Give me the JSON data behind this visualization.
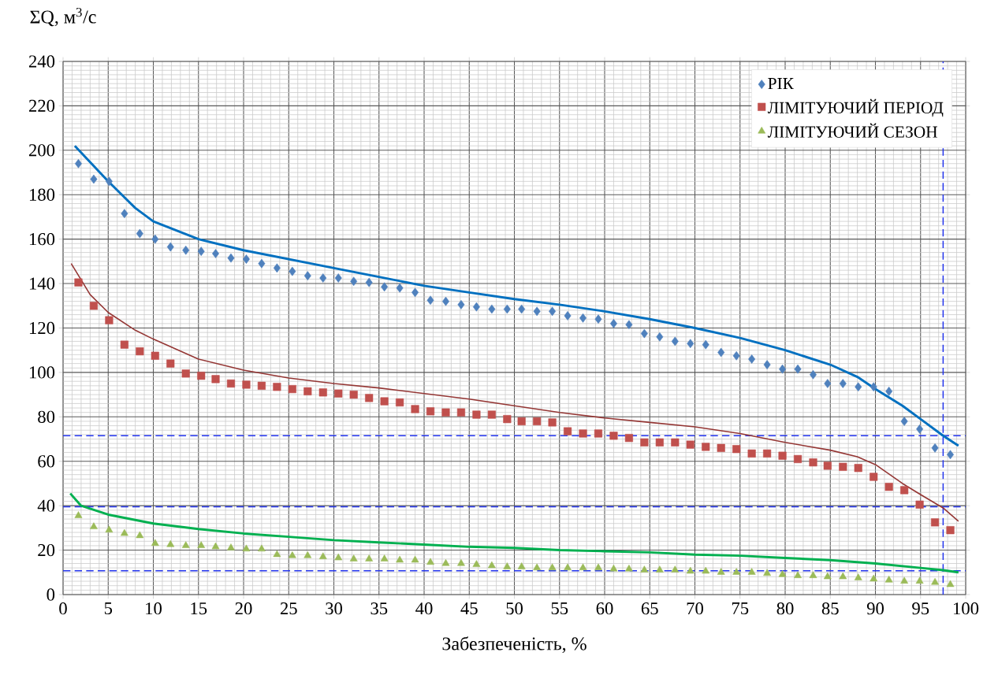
{
  "chart_data": {
    "type": "scatter",
    "xlabel": "Забезпеченість, %",
    "ylabel": "ΣQ, м$^{3}$/с",
    "x": [
      1.7,
      3.4,
      5.1,
      6.8,
      8.5,
      10.2,
      11.9,
      13.6,
      15.3,
      16.9,
      18.6,
      20.3,
      22.0,
      23.7,
      25.4,
      27.1,
      28.8,
      30.5,
      32.2,
      33.9,
      35.6,
      37.3,
      39.0,
      40.7,
      42.4,
      44.1,
      45.8,
      47.5,
      49.2,
      50.8,
      52.5,
      54.2,
      55.9,
      57.6,
      59.3,
      61.0,
      62.7,
      64.4,
      66.1,
      67.8,
      69.5,
      71.2,
      72.9,
      74.6,
      76.3,
      78.0,
      79.7,
      81.4,
      83.1,
      84.7,
      86.4,
      88.1,
      89.8,
      91.5,
      93.2,
      94.9,
      96.6,
      98.3
    ],
    "series": [
      {
        "name": "РІК",
        "color": "#4f81bd",
        "marker": "diamond",
        "values": [
          194,
          187,
          186,
          171.5,
          162.5,
          160,
          156.5,
          155,
          154.5,
          153.5,
          151.5,
          151,
          149,
          147,
          145.5,
          143.5,
          142.5,
          142.5,
          141,
          140.5,
          138.5,
          138,
          136,
          132.5,
          132,
          130.5,
          129.5,
          128.5,
          128.5,
          128.5,
          127.5,
          127.5,
          125.5,
          124.5,
          124,
          122,
          121.5,
          117.5,
          116,
          114,
          113,
          112.5,
          109,
          107.5,
          106,
          103.5,
          101.5,
          101.5,
          99,
          95,
          95,
          93.5,
          93.5,
          91.5,
          78,
          74.5,
          66,
          63
        ]
      },
      {
        "name": "ЛІМІТУЮЧИЙ ПЕРІОД",
        "color": "#c0504d",
        "marker": "square",
        "values": [
          140.5,
          130,
          123.5,
          112.5,
          109.5,
          107.5,
          104,
          99.5,
          98.5,
          97,
          95,
          94.5,
          94,
          93.5,
          92.5,
          91.5,
          91,
          90.5,
          90,
          88.5,
          87,
          86.5,
          83.5,
          82.5,
          82,
          82,
          81,
          81,
          79,
          78,
          78,
          77.5,
          73.5,
          72.5,
          72.5,
          71.5,
          70.5,
          68.5,
          68.5,
          68.5,
          67.5,
          66.5,
          66,
          65.5,
          63.5,
          63.5,
          62.5,
          61,
          59.5,
          58,
          57.5,
          57,
          53,
          48.5,
          47,
          40.5,
          32.5,
          29
        ]
      },
      {
        "name": "ЛІМІТУЮЧИЙ СЕЗОН",
        "color": "#9bbb59",
        "marker": "triangle",
        "values": [
          35.5,
          30.5,
          29,
          27.5,
          26.5,
          23,
          22.5,
          22,
          22,
          21.5,
          21,
          20.5,
          20.5,
          18,
          17.5,
          17.5,
          17,
          16.5,
          16,
          16,
          16,
          15.5,
          15.5,
          14.5,
          14,
          14,
          13.5,
          13,
          12.5,
          12.5,
          12,
          12,
          12,
          12,
          12,
          11.5,
          11.5,
          11,
          11,
          11,
          10.5,
          10.5,
          10,
          10,
          10,
          9.5,
          9,
          8.5,
          8.5,
          8,
          8,
          7.5,
          7,
          6.5,
          6,
          6,
          5.5,
          4.5
        ]
      },
      {
        "type": "line",
        "color": "#0070c0",
        "x": [
          1.3,
          5,
          8,
          10,
          15,
          20,
          25,
          30,
          35,
          40,
          45,
          50,
          55,
          60,
          65,
          70,
          75,
          80,
          85,
          88,
          90,
          93,
          95,
          97.5,
          99.2
        ],
        "values": [
          202,
          186,
          174,
          168,
          160,
          155,
          151,
          147,
          143,
          139,
          136,
          133,
          130.5,
          127.5,
          124,
          120,
          115.5,
          110,
          103.5,
          98,
          92.5,
          85,
          79,
          71.5,
          67
        ]
      },
      {
        "type": "line",
        "color": "#943634",
        "x": [
          0.9,
          3,
          5,
          8,
          10,
          15,
          20,
          25,
          30,
          35,
          40,
          45,
          50,
          55,
          60,
          65,
          70,
          75,
          80,
          85,
          88,
          90,
          93,
          95,
          97.5,
          99.2
        ],
        "values": [
          149,
          135,
          127,
          119,
          115,
          106,
          101,
          97.5,
          95,
          93,
          90.5,
          88,
          85,
          82,
          79.5,
          77.5,
          75.5,
          72.5,
          68.5,
          65,
          62,
          58.5,
          50,
          45,
          39,
          33
        ]
      },
      {
        "type": "line",
        "color": "#00b050",
        "x": [
          0.8,
          2,
          5,
          10,
          15,
          20,
          25,
          30,
          35,
          40,
          45,
          50,
          55,
          60,
          65,
          70,
          75,
          80,
          85,
          90,
          95,
          97.5,
          99.2
        ],
        "values": [
          45.5,
          40,
          36,
          32,
          29.5,
          27.5,
          26,
          24.5,
          23.5,
          22.5,
          21.5,
          21,
          20,
          19.5,
          19,
          18,
          17.5,
          16.5,
          15.5,
          14,
          12,
          11,
          10
        ]
      }
    ],
    "ref_lines": [
      {
        "axis": "y",
        "value": 71.5,
        "color": "#2233ee",
        "line_style": "dashed"
      },
      {
        "axis": "y",
        "value": 39.5,
        "color": "#2233ee",
        "line_style": "dashed"
      },
      {
        "axis": "y",
        "value": 10.7,
        "color": "#2233ee",
        "line_style": "dashed"
      },
      {
        "axis": "x",
        "value": 97.5,
        "color": "#2233ee",
        "line_style": "dashed"
      }
    ],
    "xlim": [
      0,
      100
    ],
    "ylim": [
      0,
      240
    ],
    "xticks": [
      0,
      5,
      10,
      15,
      20,
      25,
      30,
      35,
      40,
      45,
      50,
      55,
      60,
      65,
      70,
      75,
      80,
      85,
      90,
      95,
      100
    ],
    "yticks": [
      0,
      20,
      40,
      60,
      80,
      100,
      120,
      140,
      160,
      180,
      200,
      220,
      240
    ],
    "grid": true,
    "legend": "top right"
  }
}
